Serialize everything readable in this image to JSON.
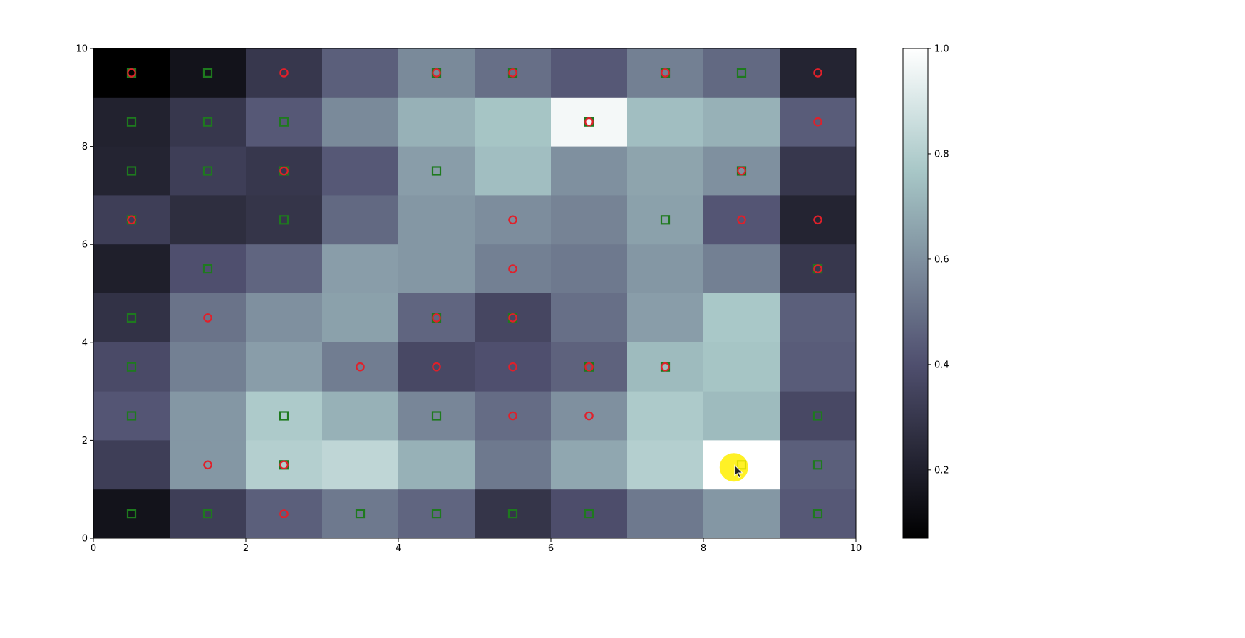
{
  "chart_data": {
    "type": "heatmap",
    "title": "",
    "xlabel": "",
    "ylabel": "",
    "xlim": [
      0,
      10
    ],
    "ylim": [
      0,
      10
    ],
    "x_ticks": [
      "0",
      "2",
      "4",
      "6",
      "8",
      "10"
    ],
    "y_ticks": [
      "0",
      "2",
      "4",
      "6",
      "8",
      "10"
    ],
    "colormap": "bone",
    "colorbar": {
      "range": [
        0.07,
        1.0
      ],
      "ticks": [
        "0.2",
        "0.4",
        "0.6",
        "0.8",
        "1.0"
      ],
      "tick_values": [
        0.2,
        0.4,
        0.6,
        0.8,
        1.0
      ]
    },
    "grid": false,
    "note_rows": "values listed from top row (y 9-10) to bottom row (y 0-1), left to right",
    "values": [
      [
        0.07,
        0.15,
        0.3,
        0.45,
        0.58,
        0.5,
        0.43,
        0.55,
        0.48,
        0.22
      ],
      [
        0.21,
        0.3,
        0.43,
        0.58,
        0.7,
        0.76,
        0.97,
        0.74,
        0.7,
        0.44
      ],
      [
        0.22,
        0.33,
        0.3,
        0.43,
        0.64,
        0.74,
        0.6,
        0.66,
        0.6,
        0.3
      ],
      [
        0.33,
        0.26,
        0.29,
        0.48,
        0.62,
        0.59,
        0.56,
        0.65,
        0.42,
        0.22
      ],
      [
        0.2,
        0.4,
        0.47,
        0.64,
        0.62,
        0.55,
        0.53,
        0.62,
        0.55,
        0.3
      ],
      [
        0.28,
        0.51,
        0.6,
        0.65,
        0.47,
        0.36,
        0.5,
        0.64,
        0.77,
        0.45
      ],
      [
        0.38,
        0.55,
        0.64,
        0.54,
        0.37,
        0.4,
        0.46,
        0.73,
        0.76,
        0.44
      ],
      [
        0.42,
        0.62,
        0.78,
        0.7,
        0.57,
        0.49,
        0.6,
        0.78,
        0.73,
        0.37
      ],
      [
        0.33,
        0.62,
        0.8,
        0.83,
        0.7,
        0.53,
        0.67,
        0.8,
        1.0,
        0.45
      ],
      [
        0.15,
        0.33,
        0.45,
        0.53,
        0.47,
        0.29,
        0.39,
        0.53,
        0.62,
        0.43
      ]
    ],
    "markers": {
      "circle_color": "#e0202a",
      "square_color": "#1e7a1e",
      "points": [
        {
          "x": 0.5,
          "y": 9.5,
          "m": "both"
        },
        {
          "x": 1.5,
          "y": 9.5,
          "m": "square"
        },
        {
          "x": 2.5,
          "y": 9.5,
          "m": "circle"
        },
        {
          "x": 4.5,
          "y": 9.5,
          "m": "both"
        },
        {
          "x": 5.5,
          "y": 9.5,
          "m": "both"
        },
        {
          "x": 7.5,
          "y": 9.5,
          "m": "both"
        },
        {
          "x": 8.5,
          "y": 9.5,
          "m": "square"
        },
        {
          "x": 9.5,
          "y": 9.5,
          "m": "circle"
        },
        {
          "x": 0.5,
          "y": 8.5,
          "m": "square"
        },
        {
          "x": 1.5,
          "y": 8.5,
          "m": "square"
        },
        {
          "x": 2.5,
          "y": 8.5,
          "m": "square"
        },
        {
          "x": 6.5,
          "y": 8.5,
          "m": "both"
        },
        {
          "x": 9.5,
          "y": 8.5,
          "m": "circle"
        },
        {
          "x": 0.5,
          "y": 7.5,
          "m": "square"
        },
        {
          "x": 1.5,
          "y": 7.5,
          "m": "square"
        },
        {
          "x": 2.5,
          "y": 7.5,
          "m": "both"
        },
        {
          "x": 4.5,
          "y": 7.5,
          "m": "square"
        },
        {
          "x": 8.5,
          "y": 7.5,
          "m": "both"
        },
        {
          "x": 0.5,
          "y": 6.5,
          "m": "both"
        },
        {
          "x": 2.5,
          "y": 6.5,
          "m": "square"
        },
        {
          "x": 5.5,
          "y": 6.5,
          "m": "circle"
        },
        {
          "x": 7.5,
          "y": 6.5,
          "m": "square"
        },
        {
          "x": 8.5,
          "y": 6.5,
          "m": "circle"
        },
        {
          "x": 9.5,
          "y": 6.5,
          "m": "circle"
        },
        {
          "x": 1.5,
          "y": 5.5,
          "m": "square"
        },
        {
          "x": 5.5,
          "y": 5.5,
          "m": "circle"
        },
        {
          "x": 9.5,
          "y": 5.5,
          "m": "both"
        },
        {
          "x": 0.5,
          "y": 4.5,
          "m": "square"
        },
        {
          "x": 1.5,
          "y": 4.5,
          "m": "circle"
        },
        {
          "x": 4.5,
          "y": 4.5,
          "m": "both"
        },
        {
          "x": 5.5,
          "y": 4.5,
          "m": "both"
        },
        {
          "x": 0.5,
          "y": 3.5,
          "m": "square"
        },
        {
          "x": 3.5,
          "y": 3.5,
          "m": "circle"
        },
        {
          "x": 4.5,
          "y": 3.5,
          "m": "circle"
        },
        {
          "x": 5.5,
          "y": 3.5,
          "m": "circle"
        },
        {
          "x": 6.5,
          "y": 3.5,
          "m": "both"
        },
        {
          "x": 7.5,
          "y": 3.5,
          "m": "both"
        },
        {
          "x": 0.5,
          "y": 2.5,
          "m": "square"
        },
        {
          "x": 2.5,
          "y": 2.5,
          "m": "square"
        },
        {
          "x": 4.5,
          "y": 2.5,
          "m": "square"
        },
        {
          "x": 5.5,
          "y": 2.5,
          "m": "circle"
        },
        {
          "x": 6.5,
          "y": 2.5,
          "m": "circle"
        },
        {
          "x": 9.5,
          "y": 2.5,
          "m": "square"
        },
        {
          "x": 1.5,
          "y": 1.5,
          "m": "circle"
        },
        {
          "x": 2.5,
          "y": 1.5,
          "m": "both"
        },
        {
          "x": 8.5,
          "y": 1.5,
          "m": "square"
        },
        {
          "x": 9.5,
          "y": 1.5,
          "m": "square"
        },
        {
          "x": 0.5,
          "y": 0.5,
          "m": "square"
        },
        {
          "x": 1.5,
          "y": 0.5,
          "m": "square"
        },
        {
          "x": 2.5,
          "y": 0.5,
          "m": "circle"
        },
        {
          "x": 3.5,
          "y": 0.5,
          "m": "square"
        },
        {
          "x": 4.5,
          "y": 0.5,
          "m": "square"
        },
        {
          "x": 5.5,
          "y": 0.5,
          "m": "square"
        },
        {
          "x": 6.5,
          "y": 0.5,
          "m": "square"
        },
        {
          "x": 9.5,
          "y": 0.5,
          "m": "square"
        }
      ]
    }
  },
  "cursor": {
    "x": 8.4,
    "y": 1.45,
    "highlight_color": "#ffee00"
  }
}
